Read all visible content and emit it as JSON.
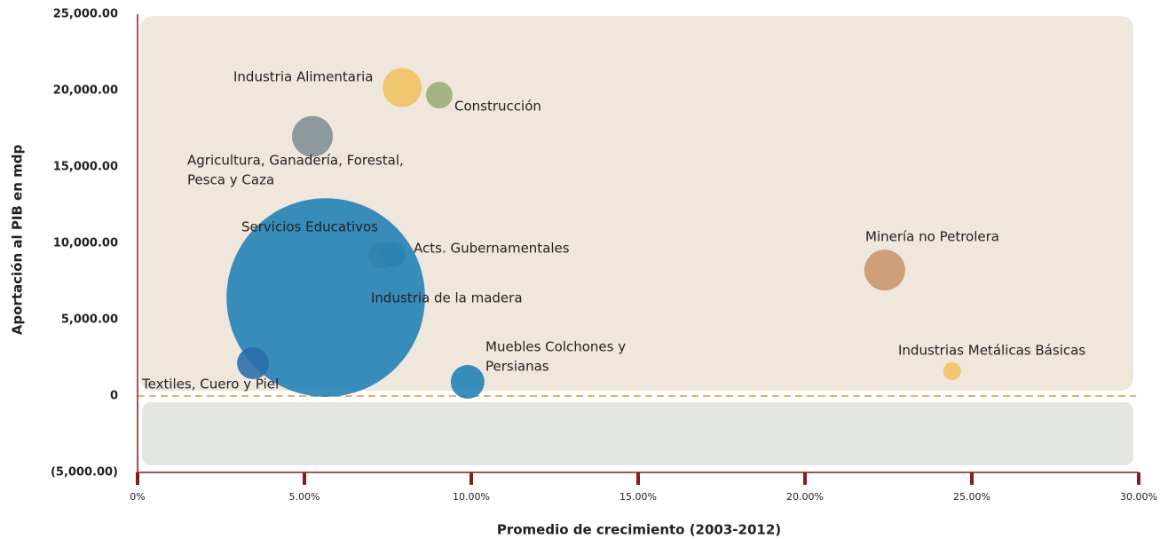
{
  "chart_data": {
    "type": "bubble",
    "x_label": "Promedio de crecimiento (2003-2012)",
    "y_label": "Aportación al PIB en mdp",
    "xlim": [
      0,
      30
    ],
    "ylim": [
      -5000,
      25000
    ],
    "xticks": [
      {
        "value": 0,
        "label": "0%"
      },
      {
        "value": 5,
        "label": "5.00%"
      },
      {
        "value": 10,
        "label": "10.00%"
      },
      {
        "value": 15,
        "label": "15.00%"
      },
      {
        "value": 20,
        "label": "20.00%"
      },
      {
        "value": 25,
        "label": "25.00%"
      },
      {
        "value": 30,
        "label": "30.00%"
      }
    ],
    "yticks": [
      {
        "value": -5000,
        "label": "(5,000.00)"
      },
      0,
      {
        "value": 5000,
        "label": "5,000.00"
      },
      {
        "value": 10000,
        "label": "10,000.00"
      },
      {
        "value": 15000,
        "label": "15,000.00"
      },
      {
        "value": 20000,
        "label": "20,000.00"
      },
      {
        "value": 25000,
        "label": "25,000.00"
      }
    ],
    "labels": [
      [
        "Industria Alimentaria"
      ],
      [
        "Construcción"
      ],
      [
        "Agricultura, Ganadería, Forestal,",
        "Pesca y Caza"
      ],
      [
        "Servicios Educativos"
      ],
      [
        "Acts. Gubernamentales"
      ],
      [
        "Industria de la madera"
      ],
      [
        "Textiles, Cuero y Piel"
      ],
      [
        "Muebles Colchones y",
        "Persianas"
      ],
      [
        "Minería no Petrolera"
      ],
      [
        "Industrias Metálicas Básicas"
      ]
    ],
    "x": [
      7.93,
      9.04,
      5.24,
      7.31,
      7.66,
      5.64,
      3.46,
      9.89,
      22.39,
      24.41
    ],
    "values": [
      20200,
      19700,
      17000,
      9200,
      9250,
      6450,
      2150,
      930,
      8250,
      1630
    ],
    "sizes": [
      484,
      225,
      529,
      225,
      196,
      12500,
      324,
      361,
      529,
      100
    ],
    "colors": [
      "#f0c262",
      "#9aab78",
      "#7f8f94",
      "#c9956b",
      "#7f8f94",
      "#1f7fb4",
      "#2a6ca8",
      "#1f7fb4",
      "#c9956b",
      "#f0c262"
    ]
  }
}
